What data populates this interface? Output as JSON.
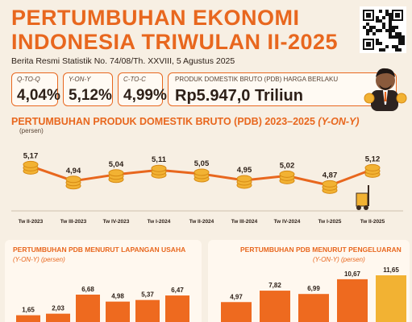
{
  "header": {
    "title_line1": "PERTUMBUHAN EKONOMI",
    "title_line2": "INDONESIA TRIWULAN II-2025",
    "subtitle": "Berita Resmi Statistik No. 74/08/Th. XXVIII, 5 Agustus 2025"
  },
  "indicators": [
    {
      "label": "Q-TO-Q",
      "value": "4,04%"
    },
    {
      "label": "Y-ON-Y",
      "value": "5,12%"
    },
    {
      "label": "C-TO-C",
      "value": "4,99%"
    }
  ],
  "pdb": {
    "label": "PRODUK DOMESTIK BRUTO (PDB) HARGA BERLAKU",
    "value": "Rp5.947,0 Triliun"
  },
  "colors": {
    "accent": "#e8671e",
    "coin": "#f2b233",
    "coin_dark": "#d68a14",
    "bar_orange": "#ee6a1f",
    "bar_gold": "#f2b233",
    "background": "#f7efe3"
  },
  "chart_data": [
    {
      "type": "line",
      "title": "PERTUMBUHAN PRODUK DOMESTIK BRUTO (PDB) 2023–2025",
      "title_suffix": "(Y-ON-Y)",
      "unit": "(persen)",
      "categories": [
        "Tw II-2023",
        "Tw III-2023",
        "Tw IV-2023",
        "Tw I-2024",
        "Tw II-2024",
        "Tw III-2024",
        "Tw IV-2024",
        "Tw I-2025",
        "Tw II-2025"
      ],
      "values": [
        5.17,
        4.94,
        5.04,
        5.11,
        5.05,
        4.95,
        5.02,
        4.87,
        5.12
      ],
      "labels": [
        "5,17",
        "4,94",
        "5,04",
        "5,11",
        "5,05",
        "4,95",
        "5,02",
        "4,87",
        "5,12"
      ]
    },
    {
      "type": "bar",
      "title": "PERTUMBUHAN PDB MENURUT LAPANGAN USAHA",
      "subtitle": "(Y-ON-Y) (persen)",
      "values": [
        1.65,
        2.03,
        6.68,
        4.98,
        5.37,
        6.47
      ],
      "labels": [
        "1,65",
        "2,03",
        "6,68",
        "4,98",
        "5,37",
        "6,47"
      ]
    },
    {
      "type": "bar",
      "title": "PERTUMBUHAN PDB MENURUT PENGELUARAN",
      "subtitle": "(Y-ON-Y) (persen)",
      "values": [
        4.97,
        7.82,
        6.99,
        10.67,
        11.65
      ],
      "labels": [
        "4,97",
        "7,82",
        "6,99",
        "10,67",
        "11,65"
      ]
    }
  ]
}
